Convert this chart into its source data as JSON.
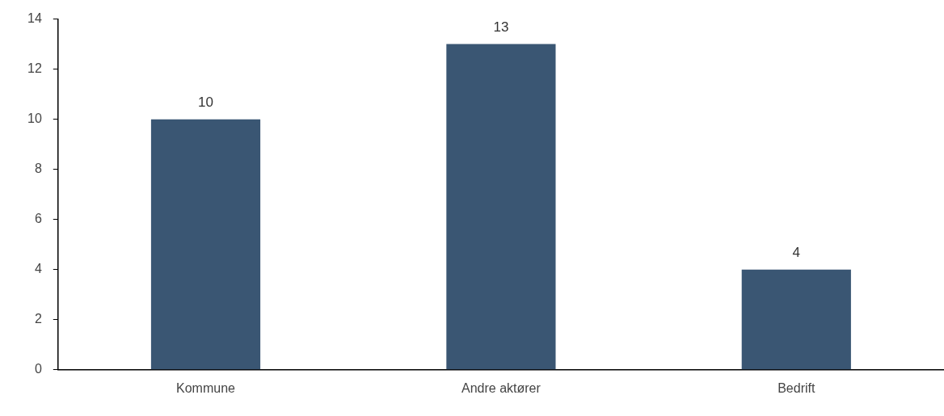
{
  "chart_data": {
    "type": "bar",
    "categories": [
      "Kommune",
      "Andre aktører",
      "Bedrift"
    ],
    "values": [
      10,
      13,
      4
    ],
    "color": "#3a5673",
    "ylim": [
      0,
      14
    ],
    "yticks": [
      0,
      2,
      4,
      6,
      8,
      10,
      12,
      14
    ],
    "grid": false,
    "legend": false,
    "data_labels": true
  }
}
